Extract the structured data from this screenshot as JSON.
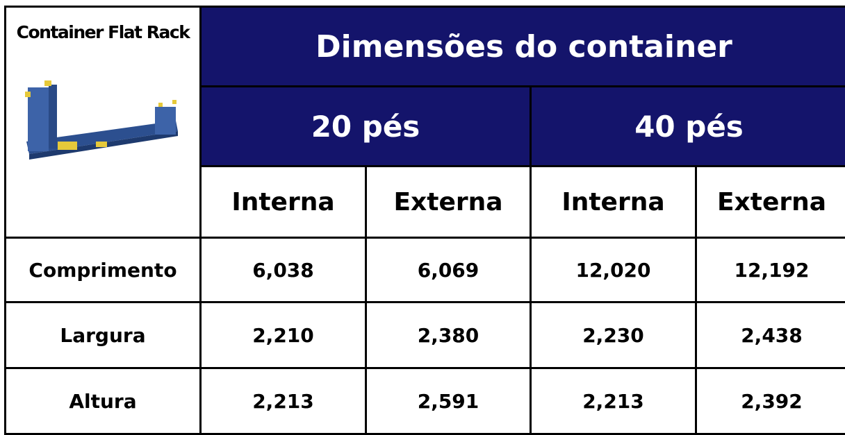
{
  "header": {
    "title": "Container Flat Rack",
    "group": "Dimensões do container",
    "sizes": [
      "20 pés",
      "40 pés"
    ],
    "subheaders": [
      "Interna",
      "Externa",
      "Interna",
      "Externa"
    ]
  },
  "table": {
    "rows": [
      [
        "Comprimento",
        "6,038",
        "6,069",
        "12,020",
        "12,192"
      ],
      [
        "Largura",
        "2,210",
        "2,380",
        "2,230",
        "2,438"
      ],
      [
        "Altura",
        "2,213",
        "2,591",
        "2,213",
        "2,392"
      ]
    ]
  }
}
